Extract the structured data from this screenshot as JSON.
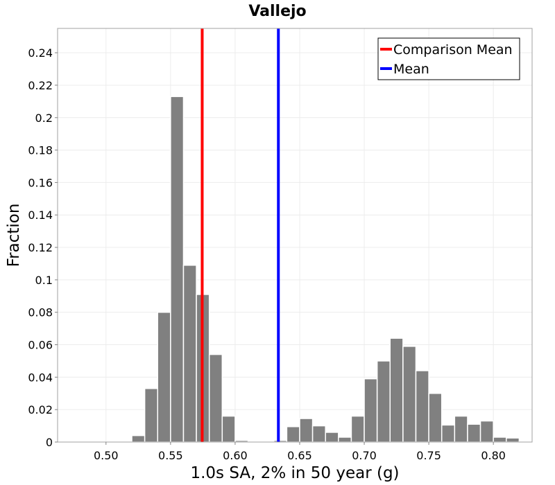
{
  "chart_data": {
    "type": "bar",
    "title": "Vallejo",
    "xlabel": "1.0s SA, 2% in 50 year (g)",
    "ylabel": "Fraction",
    "xlim": [
      0.4625,
      0.83
    ],
    "ylim": [
      0,
      0.255
    ],
    "x_ticks": [
      "0.50",
      "0.55",
      "0.60",
      "0.65",
      "0.70",
      "0.75",
      "0.80"
    ],
    "y_ticks": [
      "0",
      "0.02",
      "0.04",
      "0.06",
      "0.08",
      "0.1",
      "0.12",
      "0.14",
      "0.16",
      "0.18",
      "0.2",
      "0.22",
      "0.24"
    ],
    "grid": true,
    "bin_width": 0.01,
    "bins": [
      {
        "x": 0.525,
        "y": 0.004
      },
      {
        "x": 0.535,
        "y": 0.033
      },
      {
        "x": 0.545,
        "y": 0.08
      },
      {
        "x": 0.555,
        "y": 0.213
      },
      {
        "x": 0.565,
        "y": 0.109
      },
      {
        "x": 0.575,
        "y": 0.091
      },
      {
        "x": 0.585,
        "y": 0.054
      },
      {
        "x": 0.595,
        "y": 0.016
      },
      {
        "x": 0.605,
        "y": 0.001
      },
      {
        "x": 0.635,
        "y": 0.001
      },
      {
        "x": 0.645,
        "y": 0.0095
      },
      {
        "x": 0.655,
        "y": 0.0145
      },
      {
        "x": 0.665,
        "y": 0.01
      },
      {
        "x": 0.675,
        "y": 0.006
      },
      {
        "x": 0.685,
        "y": 0.003
      },
      {
        "x": 0.695,
        "y": 0.016
      },
      {
        "x": 0.705,
        "y": 0.039
      },
      {
        "x": 0.715,
        "y": 0.05
      },
      {
        "x": 0.725,
        "y": 0.064
      },
      {
        "x": 0.735,
        "y": 0.059
      },
      {
        "x": 0.745,
        "y": 0.044
      },
      {
        "x": 0.755,
        "y": 0.03
      },
      {
        "x": 0.765,
        "y": 0.0105
      },
      {
        "x": 0.775,
        "y": 0.016
      },
      {
        "x": 0.785,
        "y": 0.011
      },
      {
        "x": 0.795,
        "y": 0.013
      },
      {
        "x": 0.805,
        "y": 0.003
      },
      {
        "x": 0.815,
        "y": 0.0025
      },
      {
        "x": 0.825,
        "y": 0.0005
      }
    ],
    "vlines": [
      {
        "name": "Comparison Mean",
        "x": 0.5745,
        "color": "#ff0000"
      },
      {
        "name": "Mean",
        "x": 0.6335,
        "color": "#0000ff"
      }
    ],
    "legend_position": "top-right",
    "colors": {
      "bar": "#808080",
      "comparison_mean": "#ff0000",
      "mean": "#0000ff"
    }
  }
}
